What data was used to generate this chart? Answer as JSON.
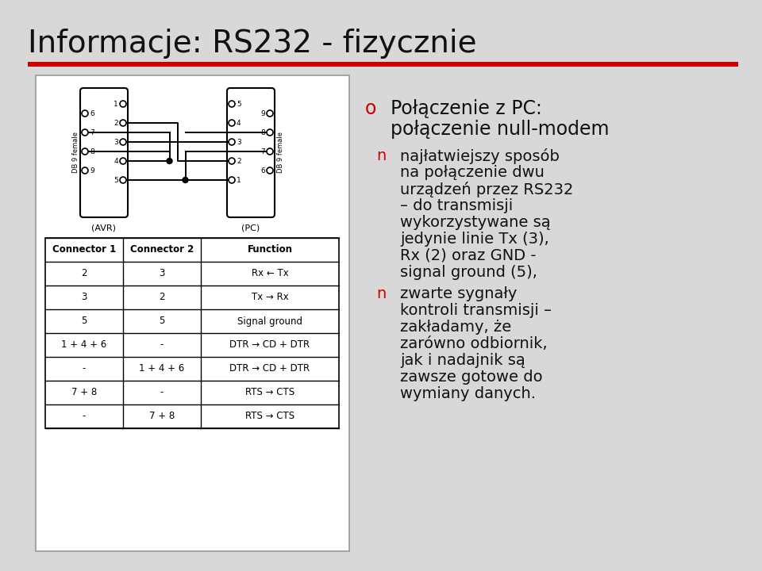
{
  "bg_color": "#d8d8d8",
  "title": "Informacje: RS232 - fizycznie",
  "title_font": "Courier New",
  "title_fontsize": 28,
  "red_bar_color": "#cc0000",
  "bullet_color": "#cc0000",
  "text_color": "#111111",
  "slide_bg": "#d8d8d8",
  "main_bullet": "o",
  "main_bullet_text_line1": "Połączenie z PC:",
  "main_bullet_text_line2": "połączenie null-modem",
  "sub_bullets": [
    {
      "marker": "n",
      "lines": [
        "najłatwiejszy sposób",
        "na połączenie dwu",
        "urządzeń przez RS232",
        "– do transmisji",
        "wykorzystywane są",
        "jedynie linie Tx (3),",
        "Rx (2) oraz GND -",
        "signal ground (5),"
      ]
    },
    {
      "marker": "n",
      "lines": [
        "zwarte sygnały",
        "kontroli transmisji –",
        "zakładamy, że",
        "zarówno odbiornik,",
        "jak i nadajnik są",
        "zawsze gotowe do",
        "wymiany danych."
      ]
    }
  ],
  "table_headers": [
    "Connector 1",
    "Connector 2",
    "Function"
  ],
  "table_rows": [
    [
      "2",
      "3",
      "Rx ← Tx"
    ],
    [
      "3",
      "2",
      "Tx → Rx"
    ],
    [
      "5",
      "5",
      "Signal ground"
    ],
    [
      "1 + 4 + 6",
      "-",
      "DTR → CD + DTR"
    ],
    [
      "-",
      "1 + 4 + 6",
      "DTR → CD + DTR"
    ],
    [
      "7 + 8",
      "-",
      "RTS → CTS"
    ],
    [
      "-",
      "7 + 8",
      "RTS → CTS"
    ]
  ]
}
